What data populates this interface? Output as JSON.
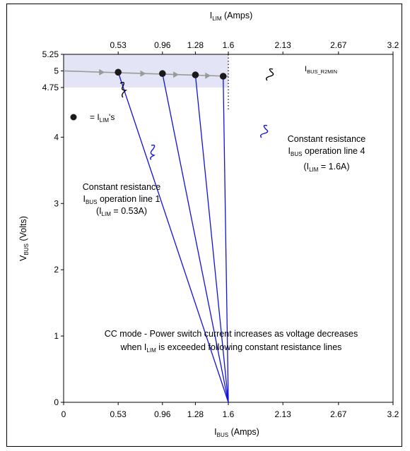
{
  "chart_data": {
    "type": "line",
    "x_bottom_label": "I",
    "x_bottom_label_sub": "BUS",
    "x_bottom_label_rest": " (Amps)",
    "x_top_label": "I",
    "x_top_label_sub": "LIM",
    "x_top_label_rest": " (Amps)",
    "y_label": "V",
    "y_label_sub": "BUS",
    "y_label_rest": " (Volts)",
    "xlim": [
      0,
      3.2
    ],
    "ylim": [
      0,
      5.25
    ],
    "x_bottom_ticks": [
      {
        "value": 0,
        "label": "0"
      },
      {
        "value": 0.53,
        "label": "0.53"
      },
      {
        "value": 0.96,
        "label": "0.96"
      },
      {
        "value": 1.28,
        "label": "1.28"
      },
      {
        "value": 1.6,
        "label": "1.6"
      },
      {
        "value": 2.13,
        "label": "2.13"
      },
      {
        "value": 2.67,
        "label": "2.67"
      },
      {
        "value": 3.2,
        "label": "3.2"
      }
    ],
    "x_top_ticks": [
      {
        "value": 0.53,
        "label": "0.53"
      },
      {
        "value": 0.96,
        "label": "0.96"
      },
      {
        "value": 1.28,
        "label": "1.28"
      },
      {
        "value": 1.6,
        "label": "1.6"
      },
      {
        "value": 2.13,
        "label": "2.13"
      },
      {
        "value": 2.67,
        "label": "2.67"
      },
      {
        "value": 3.2,
        "label": "3.2"
      }
    ],
    "y_ticks": [
      {
        "value": 0,
        "label": "0"
      },
      {
        "value": 1,
        "label": "1"
      },
      {
        "value": 2,
        "label": "2"
      },
      {
        "value": 3,
        "label": "3"
      },
      {
        "value": 4,
        "label": "4"
      },
      {
        "value": 4.75,
        "label": "4.75"
      },
      {
        "value": 5,
        "label": "5"
      },
      {
        "value": 5.25,
        "label": "5.25"
      }
    ],
    "shaded_band": {
      "y_min": 4.75,
      "y_max": 5.25,
      "x_min": 0,
      "x_max": 1.6,
      "color": "#e4e4f7"
    },
    "ilim_points": [
      {
        "x": 0.53,
        "y": 4.98
      },
      {
        "x": 0.96,
        "y": 4.96
      },
      {
        "x": 1.28,
        "y": 4.94
      },
      {
        "x": 1.55,
        "y": 4.92
      }
    ],
    "bus_line": {
      "x": [
        0,
        1.6
      ],
      "y": [
        5.0,
        4.92
      ],
      "color": "#9a9a9a"
    },
    "resistance_lines": [
      {
        "from": [
          0.53,
          4.98
        ],
        "to": [
          1.6,
          0
        ]
      },
      {
        "from": [
          0.96,
          4.96
        ],
        "to": [
          1.6,
          0
        ]
      },
      {
        "from": [
          1.28,
          4.94
        ],
        "to": [
          1.6,
          0
        ]
      },
      {
        "from": [
          1.55,
          4.92
        ],
        "to": [
          1.6,
          0
        ]
      }
    ],
    "dotted_vline": {
      "x": 1.6,
      "y_from": 4.42,
      "y_to": 5.25
    },
    "line_color": "#1010e0",
    "legend_text_pre": " = I",
    "legend_text_sub": "LIM",
    "legend_text_post": "'s",
    "ibus_r2min_pre": "I",
    "ibus_r2min_sub": "BUS_R2MIN",
    "annot1": {
      "line1": "Constant resistance",
      "line2_pre": "I",
      "line2_sub": "BUS",
      "line2_post": " operation line 1",
      "line3_pre": "(I",
      "line3_sub": "LIM",
      "line3_post": " = 0.53A)"
    },
    "annot4": {
      "line1": "Constant resistance",
      "line2_pre": "I",
      "line2_sub": "BUS",
      "line2_post": " operation line  4",
      "line3_pre": "(I",
      "line3_sub": "LIM",
      "line3_post": " = 1.6A)"
    },
    "cc_line1": "CC mode - Power switch current increases as voltage decreases",
    "cc_line2_pre": "when I",
    "cc_line2_sub": "LIM",
    "cc_line2_post": " is exceeded following constant resistance lines"
  }
}
